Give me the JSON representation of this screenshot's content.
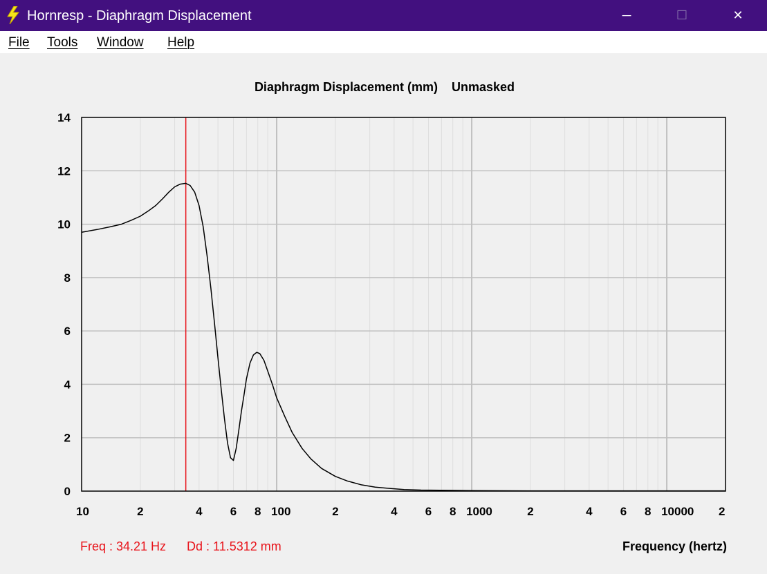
{
  "window": {
    "title": "Hornresp - Diaphragm Displacement",
    "icon": "lightning-bolt-icon",
    "controls": {
      "minimize": "─",
      "maximize": "☐",
      "close": "✕"
    }
  },
  "menu": {
    "items": [
      {
        "label": "File"
      },
      {
        "label": "Tools"
      },
      {
        "label": "Window"
      },
      {
        "label": "Help"
      }
    ]
  },
  "status": {
    "freq_label": "Freq : 34.21 Hz",
    "dd_label": "Dd : 11.5312 mm"
  },
  "colors": {
    "titlebar": "#42107f",
    "curve": "#000000",
    "marker": "#e8141b",
    "grid_major": "#c0c0c0",
    "grid_minor": "#dedede",
    "status_text": "#e8141b"
  },
  "chart_data": {
    "type": "line",
    "title": "Diaphragm Displacement (mm)    Unmasked",
    "xlabel": "Frequency (hertz)",
    "ylabel": "",
    "x_scale": "log",
    "xlim": [
      10,
      20000
    ],
    "ylim": [
      0,
      14
    ],
    "y_ticks": [
      0,
      2,
      4,
      6,
      8,
      10,
      12,
      14
    ],
    "x_tick_labels": [
      {
        "value": 10,
        "label": "10"
      },
      {
        "value": 20,
        "label": "2"
      },
      {
        "value": 40,
        "label": "4"
      },
      {
        "value": 60,
        "label": "6"
      },
      {
        "value": 80,
        "label": "8"
      },
      {
        "value": 100,
        "label": "100"
      },
      {
        "value": 200,
        "label": "2"
      },
      {
        "value": 400,
        "label": "4"
      },
      {
        "value": 600,
        "label": "6"
      },
      {
        "value": 800,
        "label": "8"
      },
      {
        "value": 1000,
        "label": "1000"
      },
      {
        "value": 2000,
        "label": "2"
      },
      {
        "value": 4000,
        "label": "4"
      },
      {
        "value": 6000,
        "label": "6"
      },
      {
        "value": 8000,
        "label": "8"
      },
      {
        "value": 10000,
        "label": "10000"
      },
      {
        "value": 20000,
        "label": "2"
      }
    ],
    "grid": true,
    "marker_x": 34.21,
    "series": [
      {
        "x": [
          10,
          12,
          14,
          16,
          18,
          20,
          22,
          24,
          26,
          28,
          30,
          32,
          34.21,
          36,
          38,
          40,
          42,
          44,
          46,
          48,
          50,
          52,
          54,
          56,
          58,
          60,
          62,
          64,
          66,
          68,
          70,
          73,
          76,
          79,
          82,
          86,
          90,
          95,
          100,
          110,
          120,
          135,
          150,
          170,
          200,
          230,
          270,
          320,
          380,
          450,
          550,
          700,
          1000,
          2000,
          5000,
          10000,
          20000
        ],
        "y": [
          9.7,
          9.8,
          9.9,
          10.0,
          10.15,
          10.3,
          10.5,
          10.7,
          10.95,
          11.2,
          11.4,
          11.5,
          11.53,
          11.45,
          11.2,
          10.7,
          9.9,
          8.8,
          7.6,
          6.3,
          5.0,
          3.8,
          2.7,
          1.8,
          1.25,
          1.15,
          1.6,
          2.3,
          3.0,
          3.6,
          4.2,
          4.8,
          5.1,
          5.2,
          5.15,
          4.9,
          4.5,
          4.0,
          3.5,
          2.8,
          2.2,
          1.6,
          1.2,
          0.85,
          0.55,
          0.38,
          0.24,
          0.15,
          0.1,
          0.06,
          0.04,
          0.03,
          0.02,
          0.01,
          0.01,
          0.01,
          0.01
        ]
      }
    ]
  }
}
